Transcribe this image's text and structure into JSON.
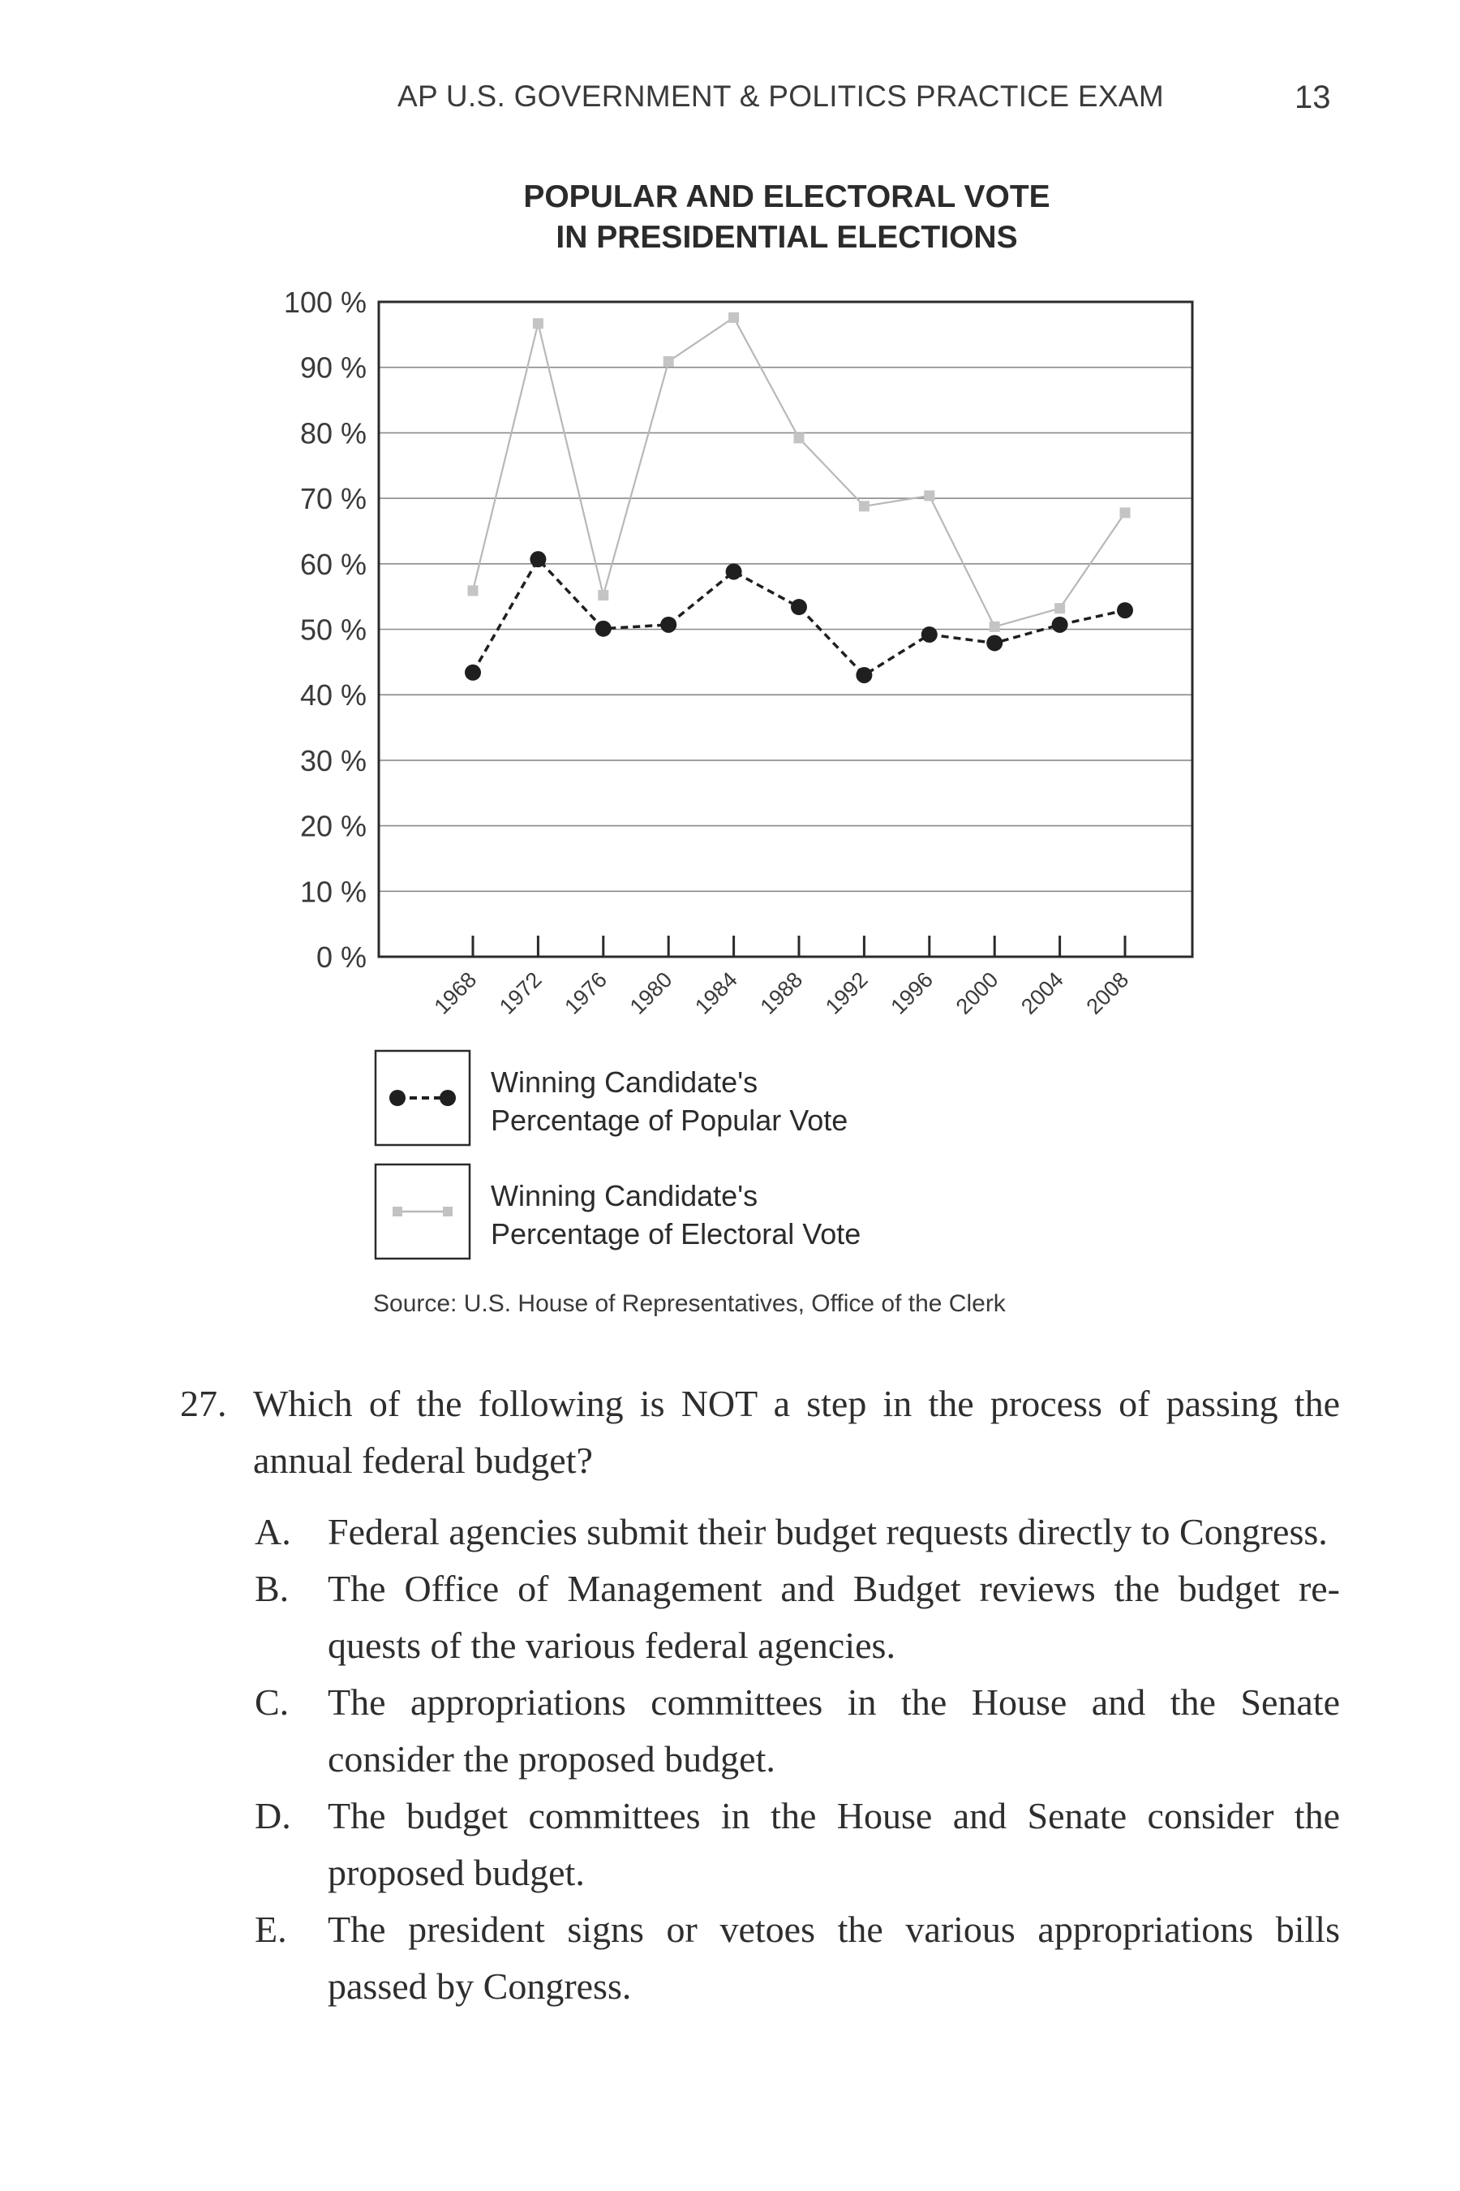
{
  "header": {
    "title": "AP U.S. GOVERNMENT & POLITICS PRACTICE EXAM",
    "page_number": "13"
  },
  "chart_data": {
    "type": "line",
    "title_lines": [
      "POPULAR AND ELECTORAL VOTE",
      "IN PRESIDENTIAL ELECTIONS"
    ],
    "categories": [
      "1968",
      "1972",
      "1976",
      "1980",
      "1984",
      "1988",
      "1992",
      "1996",
      "2000",
      "2004",
      "2008"
    ],
    "y_ticks": [
      "0 %",
      "10 %",
      "20 %",
      "30 %",
      "40 %",
      "50 %",
      "60 %",
      "70 %",
      "80 %",
      "90 %",
      "100 %"
    ],
    "ylim": [
      0,
      100
    ],
    "grid": true,
    "series": [
      {
        "name": "Winning Candidate's Percentage of Popular Vote",
        "values": [
          43.4,
          60.7,
          50.1,
          50.7,
          58.8,
          53.4,
          43.0,
          49.2,
          47.9,
          50.7,
          52.9
        ],
        "style": "dashed-black-dots",
        "color": "#1f1f1f"
      },
      {
        "name": "Winning Candidate's Percentage of Electoral Vote",
        "values": [
          55.9,
          96.7,
          55.2,
          90.9,
          97.6,
          79.2,
          68.8,
          70.4,
          50.4,
          53.2,
          67.8
        ],
        "style": "solid-gray-squares",
        "color": "#b8b8b8"
      }
    ],
    "legend": [
      {
        "lines": [
          "Winning Candidate's",
          "Percentage of Popular Vote"
        ]
      },
      {
        "lines": [
          "Winning Candidate's",
          "Percentage of Electoral Vote"
        ]
      }
    ],
    "legend_position": "bottom-left"
  },
  "source": "Source: U.S. House of Representatives, Office of the Clerk",
  "question": {
    "number": "27.",
    "text": "Which of the following is NOT a step in the process of passing the annual federal budget?",
    "options": [
      {
        "letter": "A.",
        "text": "Federal agencies submit their budget requests directly to Congress."
      },
      {
        "letter": "B.",
        "text": "The Office of Management and Budget reviews the budget re- quests of the various federal agencies."
      },
      {
        "letter": "C.",
        "text": "The appropriations committees in the House and the Senate consider the proposed budget."
      },
      {
        "letter": "D.",
        "text": "The budget committees in the House and Senate consider the proposed budget."
      },
      {
        "letter": "E.",
        "text": "The president signs or vetoes the various appropriations bills passed by Congress."
      }
    ]
  }
}
